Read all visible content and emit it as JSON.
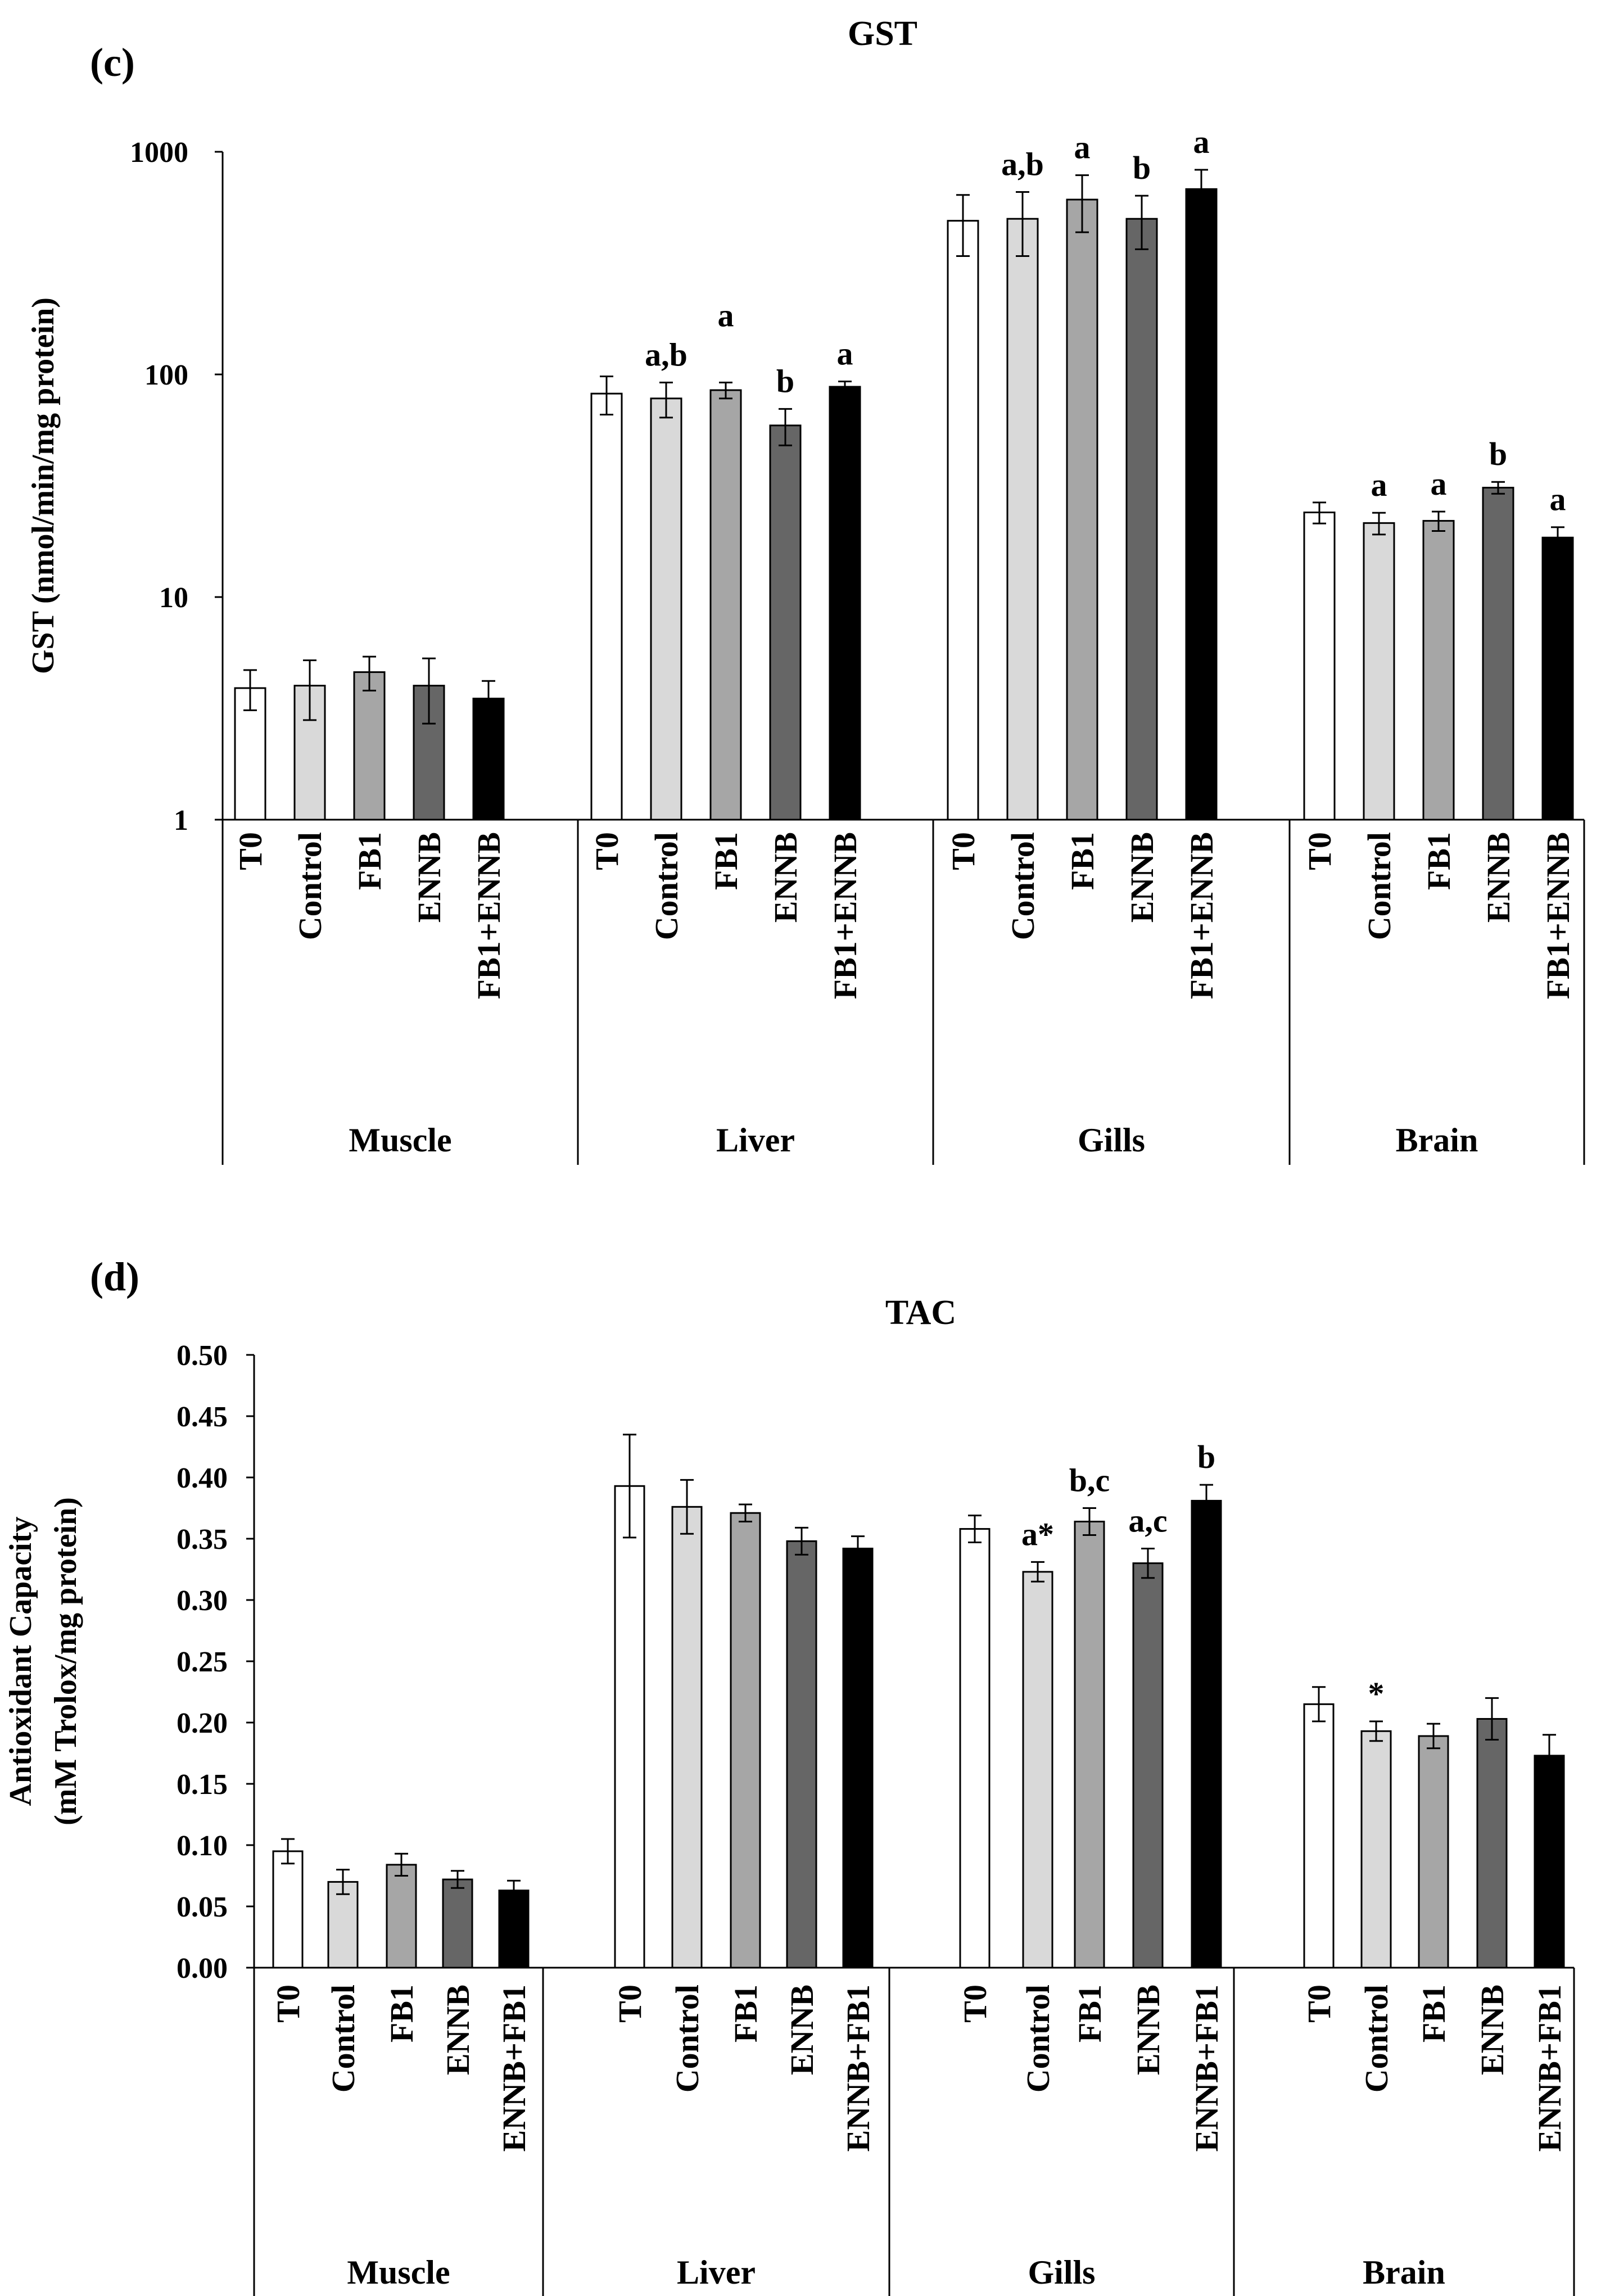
{
  "chart_data": [
    {
      "panel_label": "(c)",
      "type": "bar",
      "title": "GST",
      "ylabel": "GST (nmol/min/mg protein)",
      "yscale": "log",
      "ylim": [
        1,
        1000
      ],
      "yticks": [
        1,
        10,
        100,
        1000
      ],
      "ytick_labels": [
        "1",
        "10",
        "100",
        "1000"
      ],
      "categories": [
        "T0",
        "Control",
        "FB1",
        "ENNB",
        "FB1+ENNB"
      ],
      "series_colors": [
        "#ffffff",
        "#d9d9d9",
        "#a6a6a6",
        "#666666",
        "#000000"
      ],
      "groups": [
        {
          "name": "Muscle",
          "values": [
            3.9,
            4.0,
            4.6,
            4.0,
            3.5
          ],
          "errors": [
            0.8,
            1.2,
            0.8,
            1.3,
            0.7
          ],
          "labels": [
            "",
            "",
            "",
            "",
            ""
          ]
        },
        {
          "name": "Liver",
          "values": [
            82,
            78,
            85,
            59,
            88
          ],
          "errors": [
            16,
            14,
            7,
            11,
            5
          ],
          "labels": [
            "",
            "a,b",
            "a",
            "b",
            "a"
          ]
        },
        {
          "name": "Gills",
          "values": [
            490,
            500,
            610,
            500,
            680
          ],
          "errors": [
            150,
            160,
            175,
            135,
            150
          ],
          "labels": [
            "",
            "a,b",
            "a",
            "b",
            "a"
          ]
        },
        {
          "name": "Brain",
          "values": [
            24,
            21.5,
            22,
            31,
            18.5
          ],
          "errors": [
            2.6,
            2.4,
            2.2,
            1.9,
            2.1
          ],
          "labels": [
            "",
            "a",
            "a",
            "b",
            "a"
          ]
        }
      ]
    },
    {
      "panel_label": "(d)",
      "type": "bar",
      "title": "TAC",
      "ylabel_line1": "Antioxidant Capacity",
      "ylabel_line2": "(mM Trolox/mg protein)",
      "ylim": [
        0,
        0.5
      ],
      "yticks": [
        0,
        0.05,
        0.1,
        0.15,
        0.2,
        0.25,
        0.3,
        0.35,
        0.4,
        0.45,
        0.5
      ],
      "ytick_labels": [
        "0.00",
        "0.05",
        "0.10",
        "0.15",
        "0.20",
        "0.25",
        "0.30",
        "0.35",
        "0.40",
        "0.45",
        "0.50"
      ],
      "categories": [
        "T0",
        "Control",
        "FB1",
        "ENNB",
        "ENNB+FB1"
      ],
      "series_colors": [
        "#ffffff",
        "#d9d9d9",
        "#a6a6a6",
        "#666666",
        "#000000"
      ],
      "groups": [
        {
          "name": "Muscle",
          "values": [
            0.095,
            0.07,
            0.084,
            0.072,
            0.063
          ],
          "errors": [
            0.01,
            0.01,
            0.009,
            0.007,
            0.008
          ],
          "labels": [
            "",
            "",
            "",
            "",
            ""
          ]
        },
        {
          "name": "Liver",
          "values": [
            0.393,
            0.376,
            0.371,
            0.348,
            0.342
          ],
          "errors": [
            0.042,
            0.022,
            0.007,
            0.011,
            0.01
          ],
          "labels": [
            "",
            "",
            "",
            "",
            ""
          ]
        },
        {
          "name": "Gills",
          "values": [
            0.358,
            0.323,
            0.364,
            0.33,
            0.381
          ],
          "errors": [
            0.011,
            0.008,
            0.011,
            0.012,
            0.013
          ],
          "labels": [
            "",
            "a*",
            "b,c",
            "a,c",
            "b"
          ]
        },
        {
          "name": "Brain",
          "values": [
            0.215,
            0.193,
            0.189,
            0.203,
            0.173
          ],
          "errors": [
            0.014,
            0.008,
            0.01,
            0.017,
            0.017
          ],
          "labels": [
            "",
            "*",
            "",
            "",
            ""
          ]
        }
      ]
    }
  ]
}
